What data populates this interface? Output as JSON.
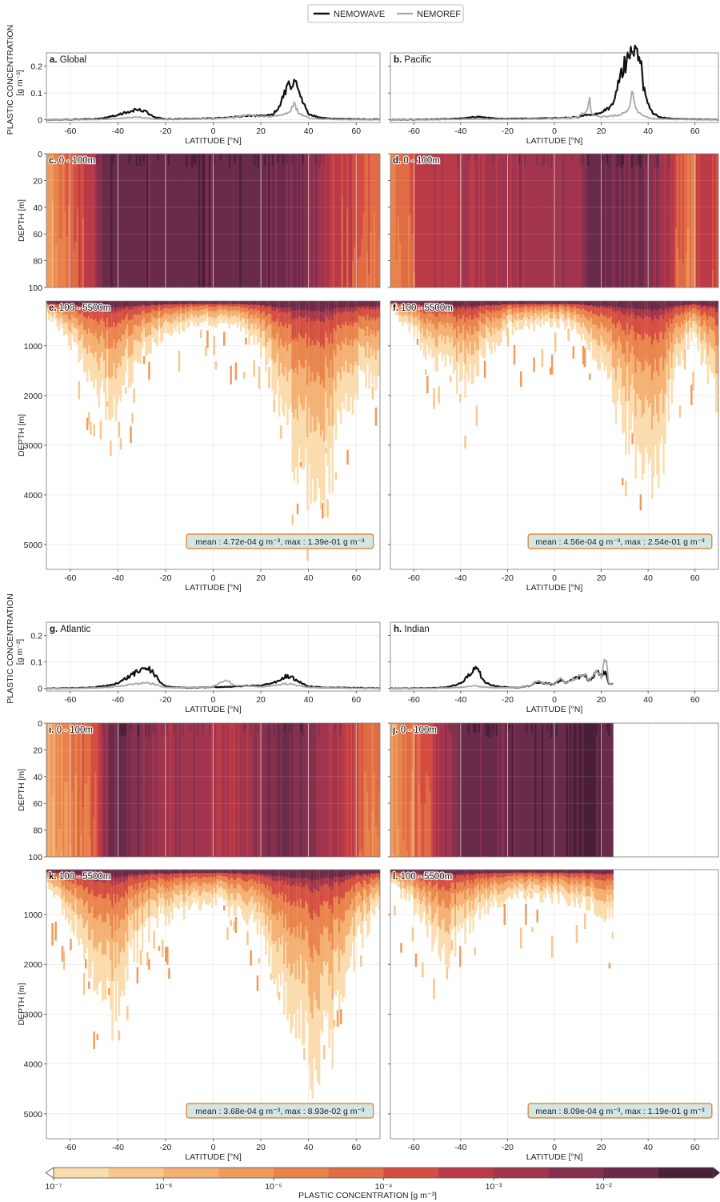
{
  "legend": {
    "wave_label": "NEMOWAVE",
    "ref_label": "NEMOREF"
  },
  "labels": {
    "lat_axis": "LATITUDE [°N]",
    "depth_axis": "DEPTH [m]",
    "conc_axis_line1": "PLASTIC CONCENTRATION",
    "conc_axis_line2": "[g m⁻³]",
    "colorbar_label": "PLASTIC CONCENTRATION [g m⁻³]"
  },
  "colors": {
    "wave": "#111111",
    "ref": "#a8a8a8",
    "stat_box_fill": "#d3e6e4",
    "stat_box_stroke": "#e08a3c",
    "colorbar": [
      "#fbdcae",
      "#f8c78e",
      "#f4b073",
      "#ef9b5d",
      "#e9834c",
      "#e06c45",
      "#d44d41",
      "#bb3a48",
      "#a2354e",
      "#86304f",
      "#6a2a4a",
      "#4a1f38"
    ]
  },
  "colorbar": {
    "ticks": [
      "10⁻⁷",
      "10⁻⁶",
      "10⁻⁵",
      "10⁻⁴",
      "10⁻³",
      "10⁻²"
    ]
  },
  "basins": [
    {
      "letter": "a.",
      "name": "Global",
      "surf_letter": "c.",
      "surf_range": "0 - 100m",
      "deep_letter": "e.",
      "deep_range": "100 - 5500m",
      "stat": "mean : 4.72e-04 g m⁻³, max : 1.39e-01 g m⁻³"
    },
    {
      "letter": "b.",
      "name": "Pacific",
      "surf_letter": "d.",
      "surf_range": "0 - 100m",
      "deep_letter": "f.",
      "deep_range": "100 - 5500m",
      "stat": "mean : 4.56e-04 g m⁻³, max : 2.54e-01 g m⁻³"
    },
    {
      "letter": "g.",
      "name": "Atlantic",
      "surf_letter": "i.",
      "surf_range": "0 - 100m",
      "deep_letter": "k.",
      "deep_range": "100 - 5500m",
      "stat": "mean : 3.68e-04 g m⁻³, max : 8.93e-02 g m⁻³"
    },
    {
      "letter": "h.",
      "name": "Indian",
      "surf_letter": "j.",
      "surf_range": "0 - 100m",
      "deep_letter": "l.",
      "deep_range": "100 - 5500m",
      "stat": "mean : 8.09e-04 g m⁻³, max : 1.19e-01 g m⁻³"
    }
  ],
  "chart_data": [
    {
      "type": "line",
      "title": "a. Global",
      "xlabel": "LATITUDE [°N]",
      "ylabel": "PLASTIC CONCENTRATION [g m⁻³]",
      "xlim": [
        -70,
        70
      ],
      "ylim": [
        -0.01,
        0.25
      ],
      "xticks": [
        -60,
        -40,
        -20,
        0,
        20,
        40,
        60
      ],
      "yticks": [
        0,
        0.1,
        0.2
      ],
      "grid": true,
      "x": [
        -70,
        -60,
        -50,
        -45,
        -40,
        -35,
        -32,
        -30,
        -27,
        -25,
        -20,
        -15,
        -10,
        -5,
        0,
        5,
        10,
        15,
        20,
        25,
        28,
        30,
        32,
        34,
        36,
        38,
        40,
        45,
        50,
        55,
        60,
        65,
        70
      ],
      "series": [
        {
          "name": "NEMOWAVE",
          "values": [
            0,
            0.001,
            0.003,
            0.008,
            0.018,
            0.032,
            0.037,
            0.036,
            0.025,
            0.01,
            0.003,
            0.003,
            0.004,
            0.005,
            0.006,
            0.008,
            0.012,
            0.015,
            0.015,
            0.02,
            0.055,
            0.11,
            0.125,
            0.138,
            0.12,
            0.06,
            0.02,
            0.008,
            0.004,
            0.003,
            0.003,
            0.002,
            0.002
          ]
        },
        {
          "name": "NEMOREF",
          "values": [
            0,
            0,
            0.001,
            0.002,
            0.005,
            0.009,
            0.01,
            0.009,
            0.006,
            0.003,
            0.002,
            0.002,
            0.003,
            0.004,
            0.004,
            0.006,
            0.012,
            0.02,
            0.012,
            0.013,
            0.018,
            0.022,
            0.025,
            0.06,
            0.024,
            0.015,
            0.007,
            0.003,
            0.002,
            0.001,
            0.001,
            0.001,
            0.001
          ]
        }
      ]
    },
    {
      "type": "line",
      "title": "b. Pacific",
      "xlabel": "LATITUDE [°N]",
      "xlim": [
        -70,
        70
      ],
      "ylim": [
        -0.01,
        0.25
      ],
      "xticks": [
        -60,
        -40,
        -20,
        0,
        20,
        40,
        60
      ],
      "yticks": [
        0,
        0.1,
        0.2
      ],
      "grid": true,
      "x": [
        -70,
        -60,
        -50,
        -40,
        -35,
        -32,
        -30,
        -25,
        -20,
        -10,
        0,
        10,
        14,
        15,
        16,
        20,
        25,
        28,
        30,
        32,
        33,
        35,
        37,
        38,
        40,
        42,
        45,
        50,
        60,
        70
      ],
      "series": [
        {
          "name": "NEMOWAVE",
          "values": [
            0,
            0.001,
            0.002,
            0.005,
            0.01,
            0.012,
            0.01,
            0.005,
            0.004,
            0.005,
            0.006,
            0.01,
            0.02,
            0.02,
            0.02,
            0.025,
            0.06,
            0.16,
            0.21,
            0.23,
            0.245,
            0.24,
            0.2,
            0.12,
            0.06,
            0.025,
            0.01,
            0.004,
            0.002,
            0.001
          ]
        },
        {
          "name": "NEMOREF",
          "values": [
            0,
            0,
            0.001,
            0.002,
            0.003,
            0.004,
            0.003,
            0.002,
            0.002,
            0.003,
            0.004,
            0.01,
            0.035,
            0.075,
            0.02,
            0.01,
            0.015,
            0.02,
            0.025,
            0.04,
            0.12,
            0.035,
            0.02,
            0.015,
            0.008,
            0.004,
            0.003,
            0.002,
            0.001,
            0.001
          ]
        }
      ]
    },
    {
      "type": "line",
      "title": "g. Atlantic",
      "xlabel": "LATITUDE [°N]",
      "xlim": [
        -70,
        70
      ],
      "ylim": [
        -0.01,
        0.25
      ],
      "xticks": [
        -60,
        -40,
        -20,
        0,
        20,
        40,
        60
      ],
      "yticks": [
        0,
        0.1,
        0.2
      ],
      "grid": true,
      "x": [
        -70,
        -60,
        -50,
        -45,
        -40,
        -35,
        -30,
        -28,
        -25,
        -22,
        -20,
        -15,
        -10,
        -5,
        0,
        5,
        10,
        15,
        20,
        25,
        28,
        30,
        33,
        35,
        38,
        40,
        45,
        50,
        60,
        70
      ],
      "series": [
        {
          "name": "NEMOWAVE",
          "values": [
            0,
            0.001,
            0.004,
            0.01,
            0.02,
            0.045,
            0.075,
            0.085,
            0.06,
            0.02,
            0.008,
            0.004,
            0.003,
            0.004,
            0.005,
            0.006,
            0.008,
            0.01,
            0.012,
            0.02,
            0.035,
            0.045,
            0.042,
            0.03,
            0.015,
            0.007,
            0.004,
            0.003,
            0.002,
            0.001
          ]
        },
        {
          "name": "NEMOREF",
          "values": [
            0,
            0,
            0.002,
            0.004,
            0.008,
            0.014,
            0.02,
            0.022,
            0.017,
            0.008,
            0.004,
            0.003,
            0.003,
            0.004,
            0.006,
            0.03,
            0.01,
            0.008,
            0.006,
            0.01,
            0.014,
            0.018,
            0.016,
            0.012,
            0.007,
            0.004,
            0.003,
            0.002,
            0.001,
            0.001
          ]
        }
      ]
    },
    {
      "type": "line",
      "title": "h. Indian",
      "xlabel": "LATITUDE [°N]",
      "xlim": [
        -70,
        70
      ],
      "ylim": [
        -0.01,
        0.25
      ],
      "xticks": [
        -60,
        -40,
        -20,
        0,
        20,
        40,
        60
      ],
      "yticks": [
        0,
        0.1,
        0.2
      ],
      "grid": true,
      "x": [
        -70,
        -60,
        -50,
        -45,
        -40,
        -36,
        -34,
        -32,
        -30,
        -25,
        -20,
        -15,
        -10,
        -8,
        -5,
        0,
        3,
        5,
        10,
        13,
        15,
        18,
        20,
        22,
        23,
        25
      ],
      "series": [
        {
          "name": "NEMOWAVE",
          "values": [
            0,
            0.001,
            0.002,
            0.006,
            0.02,
            0.055,
            0.08,
            0.06,
            0.025,
            0.008,
            0.004,
            0.004,
            0.01,
            0.025,
            0.02,
            0.015,
            0.035,
            0.02,
            0.04,
            0.05,
            0.03,
            0.06,
            0.05,
            0.065,
            0.02,
            0.015
          ]
        },
        {
          "name": "NEMOREF",
          "values": [
            0,
            0,
            0.001,
            0.002,
            0.004,
            0.008,
            0.01,
            0.008,
            0.005,
            0.003,
            0.003,
            0.004,
            0.01,
            0.03,
            0.02,
            0.015,
            0.04,
            0.02,
            0.045,
            0.055,
            0.03,
            0.065,
            0.04,
            0.12,
            0.025,
            0.015
          ]
        }
      ]
    },
    {
      "type": "heatmap",
      "title": "c. 0 - 100m / e. 100 - 5500m (Global)",
      "xlabel": "LATITUDE [°N]",
      "ylabel": "DEPTH [m]",
      "xlim": [
        -70,
        70
      ],
      "depth_ranges": [
        [
          0,
          100
        ],
        [
          100,
          5500
        ]
      ],
      "surface_yticks": [
        0,
        20,
        40,
        60,
        80,
        100
      ],
      "deep_yticks": [
        1000,
        2000,
        3000,
        4000,
        5000
      ],
      "surface_bands_lat_level": [
        [
          -70,
          3
        ],
        [
          -62,
          5
        ],
        [
          -52,
          7
        ],
        [
          -45,
          10
        ],
        [
          -38,
          10
        ],
        [
          -10,
          10
        ],
        [
          25,
          10
        ],
        [
          40,
          9
        ],
        [
          50,
          7
        ],
        [
          60,
          6
        ],
        [
          68,
          5
        ]
      ],
      "deep_profile_lat_maxdepth_m": [
        [
          -70,
          400
        ],
        [
          -60,
          1000
        ],
        [
          -50,
          2000
        ],
        [
          -42,
          2300
        ],
        [
          -35,
          1600
        ],
        [
          -25,
          900
        ],
        [
          -10,
          600
        ],
        [
          0,
          550
        ],
        [
          10,
          650
        ],
        [
          20,
          1200
        ],
        [
          28,
          2200
        ],
        [
          35,
          3500
        ],
        [
          42,
          4100
        ],
        [
          48,
          3800
        ],
        [
          55,
          2500
        ],
        [
          62,
          1600
        ],
        [
          70,
          2200
        ]
      ]
    },
    {
      "type": "heatmap",
      "title": "d. 0 - 100m / f. 100 - 5500m (Pacific)",
      "xlabel": "LATITUDE [°N]",
      "ylabel": "DEPTH [m]",
      "xlim": [
        -70,
        70
      ],
      "depth_ranges": [
        [
          0,
          100
        ],
        [
          100,
          5500
        ]
      ],
      "surface_bands_lat_level": [
        [
          -70,
          4
        ],
        [
          -55,
          7
        ],
        [
          -20,
          8
        ],
        [
          0,
          8
        ],
        [
          10,
          8
        ],
        [
          15,
          10
        ],
        [
          40,
          9
        ],
        [
          50,
          7
        ],
        [
          58,
          4
        ],
        [
          62,
          7
        ],
        [
          70,
          6
        ]
      ],
      "deep_profile_lat_maxdepth_m": [
        [
          -70,
          300
        ],
        [
          -60,
          800
        ],
        [
          -50,
          1500
        ],
        [
          -40,
          1900
        ],
        [
          -30,
          1200
        ],
        [
          -20,
          700
        ],
        [
          0,
          550
        ],
        [
          10,
          700
        ],
        [
          20,
          1500
        ],
        [
          30,
          2800
        ],
        [
          40,
          4000
        ],
        [
          45,
          3500
        ],
        [
          52,
          1500
        ],
        [
          58,
          800
        ],
        [
          70,
          2200
        ]
      ]
    },
    {
      "type": "heatmap",
      "title": "i. 0 - 100m / k. 100 - 5500m (Atlantic)",
      "xlabel": "LATITUDE [°N]",
      "ylabel": "DEPTH [m]",
      "xlim": [
        -70,
        70
      ],
      "depth_ranges": [
        [
          0,
          100
        ],
        [
          100,
          5500
        ]
      ],
      "surface_bands_lat_level": [
        [
          -65,
          3
        ],
        [
          -55,
          5
        ],
        [
          -50,
          6
        ],
        [
          -42,
          10
        ],
        [
          -20,
          8
        ],
        [
          0,
          8
        ],
        [
          10,
          7
        ],
        [
          30,
          10
        ],
        [
          45,
          8
        ],
        [
          55,
          7
        ],
        [
          65,
          5
        ]
      ],
      "deep_profile_lat_maxdepth_m": [
        [
          -70,
          400
        ],
        [
          -60,
          1200
        ],
        [
          -50,
          2500
        ],
        [
          -42,
          3200
        ],
        [
          -35,
          2000
        ],
        [
          -25,
          1200
        ],
        [
          -10,
          900
        ],
        [
          0,
          800
        ],
        [
          10,
          1000
        ],
        [
          20,
          1500
        ],
        [
          30,
          2800
        ],
        [
          38,
          3800
        ],
        [
          42,
          4300
        ],
        [
          48,
          4000
        ],
        [
          55,
          2500
        ],
        [
          62,
          1500
        ],
        [
          70,
          800
        ]
      ]
    },
    {
      "type": "heatmap",
      "title": "j. 0 - 100m / l. 100 - 5500m (Indian)",
      "xlabel": "LATITUDE [°N]",
      "ylabel": "DEPTH [m]",
      "xlim": [
        -70,
        70
      ],
      "data_xmax": 25,
      "depth_ranges": [
        [
          0,
          100
        ],
        [
          100,
          5500
        ]
      ],
      "surface_bands_lat_level": [
        [
          -70,
          3
        ],
        [
          -60,
          5
        ],
        [
          -50,
          7
        ],
        [
          -40,
          10
        ],
        [
          0,
          10
        ],
        [
          15,
          11
        ],
        [
          25,
          10
        ]
      ],
      "deep_profile_lat_maxdepth_m": [
        [
          -70,
          400
        ],
        [
          -60,
          900
        ],
        [
          -52,
          1600
        ],
        [
          -45,
          1900
        ],
        [
          -38,
          1400
        ],
        [
          -30,
          900
        ],
        [
          -20,
          700
        ],
        [
          -10,
          650
        ],
        [
          0,
          700
        ],
        [
          10,
          800
        ],
        [
          20,
          1000
        ],
        [
          25,
          1100
        ]
      ]
    }
  ]
}
